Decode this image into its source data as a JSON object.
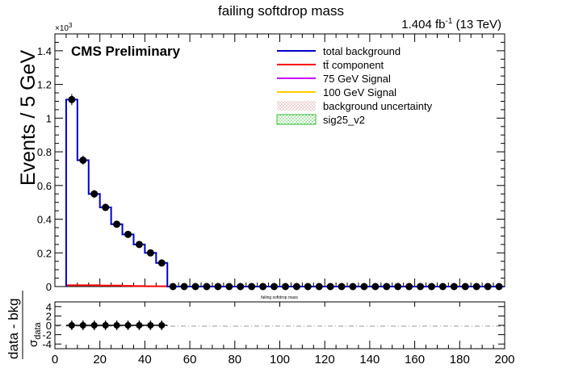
{
  "chart_data": [
    {
      "type": "bar",
      "title": "failing softdrop mass",
      "lumi_label": "1.404 fb",
      "lumi_exponent": "-1",
      "energy_label": " (13 TeV)",
      "experiment_label": "CMS Preliminary",
      "ylabel": "Events / 5 GeV",
      "y_multiplier_label": "×10",
      "y_multiplier_exponent": "3",
      "xlim": [
        0,
        200
      ],
      "ylim": [
        0,
        1500
      ],
      "y_tick_labels": [
        "0",
        "0.2",
        "0.4",
        "0.6",
        "0.8",
        "1",
        "1.2",
        "1.4"
      ],
      "y_tick_values": [
        0,
        200,
        400,
        600,
        800,
        1000,
        1200,
        1400
      ],
      "legend_position": "top-right",
      "legend": [
        {
          "label": "total background",
          "style": "line",
          "color": "#0000cc"
        },
        {
          "label": "tt̄ component",
          "style": "line",
          "color": "#ff0000"
        },
        {
          "label": "75 GeV Signal",
          "style": "line",
          "color": "#cc00ff"
        },
        {
          "label": "100 GeV Signal",
          "style": "line",
          "color": "#ffcc00"
        },
        {
          "label": "background uncertainty",
          "style": "hatch",
          "color": "#cc8888"
        },
        {
          "label": "sig25_v2",
          "style": "hatch",
          "color": "#33bb33"
        }
      ],
      "bin_width": 5,
      "bin_centers": [
        7.5,
        12.5,
        17.5,
        22.5,
        27.5,
        32.5,
        37.5,
        42.5,
        47.5,
        52.5,
        57.5,
        62.5,
        67.5,
        72.5,
        77.5,
        82.5,
        87.5,
        92.5,
        97.5,
        102.5,
        107.5,
        112.5,
        117.5,
        122.5,
        127.5,
        132.5,
        137.5,
        142.5,
        147.5,
        152.5,
        157.5,
        162.5,
        167.5,
        172.5,
        177.5,
        182.5,
        187.5,
        192.5,
        197.5
      ],
      "series": [
        {
          "name": "total background",
          "values": [
            1110,
            750,
            550,
            470,
            370,
            310,
            250,
            200,
            140,
            0,
            0,
            0,
            0,
            0,
            0,
            0,
            0,
            0,
            0,
            0,
            0,
            0,
            0,
            0,
            0,
            0,
            0,
            0,
            0,
            0,
            0,
            0,
            0,
            0,
            0,
            0,
            0,
            0,
            0
          ]
        },
        {
          "name": "tt̄ component",
          "values": [
            8,
            8,
            8,
            6,
            6,
            4,
            3,
            2,
            2,
            0,
            0,
            0,
            0,
            0,
            0,
            0,
            0,
            0,
            0,
            0,
            0,
            0,
            0,
            0,
            0,
            0,
            0,
            0,
            0,
            0,
            0,
            0,
            0,
            0,
            0,
            0,
            0,
            0,
            0
          ]
        },
        {
          "name": "data",
          "values": [
            1110,
            750,
            550,
            470,
            370,
            310,
            250,
            200,
            140,
            0,
            0,
            0,
            0,
            0,
            0,
            0,
            0,
            0,
            0,
            0,
            0,
            0,
            0,
            0,
            0,
            0,
            0,
            0,
            0,
            0,
            0,
            0,
            0,
            0,
            0,
            0,
            0,
            0,
            0
          ]
        }
      ],
      "grid": false
    },
    {
      "type": "scatter",
      "title": "failing softdrop mass",
      "ylabel": "data - bkg",
      "ylabel_denominator": "σ",
      "ylabel_denominator_sub": "data",
      "xlim": [
        0,
        200
      ],
      "ylim": [
        -5,
        5
      ],
      "x_tick_labels": [
        "0",
        "20",
        "40",
        "60",
        "80",
        "100",
        "120",
        "140",
        "160",
        "180",
        "200"
      ],
      "x_tick_values": [
        0,
        20,
        40,
        60,
        80,
        100,
        120,
        140,
        160,
        180,
        200
      ],
      "y_tick_labels": [
        "-4",
        "-2",
        "0",
        "2",
        "4"
      ],
      "y_tick_values": [
        -4,
        -2,
        0,
        2,
        4
      ],
      "series": [
        {
          "name": "pull",
          "x": [
            7.5,
            12.5,
            17.5,
            22.5,
            27.5,
            32.5,
            37.5,
            42.5,
            47.5
          ],
          "values": [
            0,
            0,
            0,
            0,
            0,
            0,
            0,
            0,
            0
          ],
          "error": 1
        }
      ],
      "reference_line": 0,
      "grid": false
    }
  ]
}
